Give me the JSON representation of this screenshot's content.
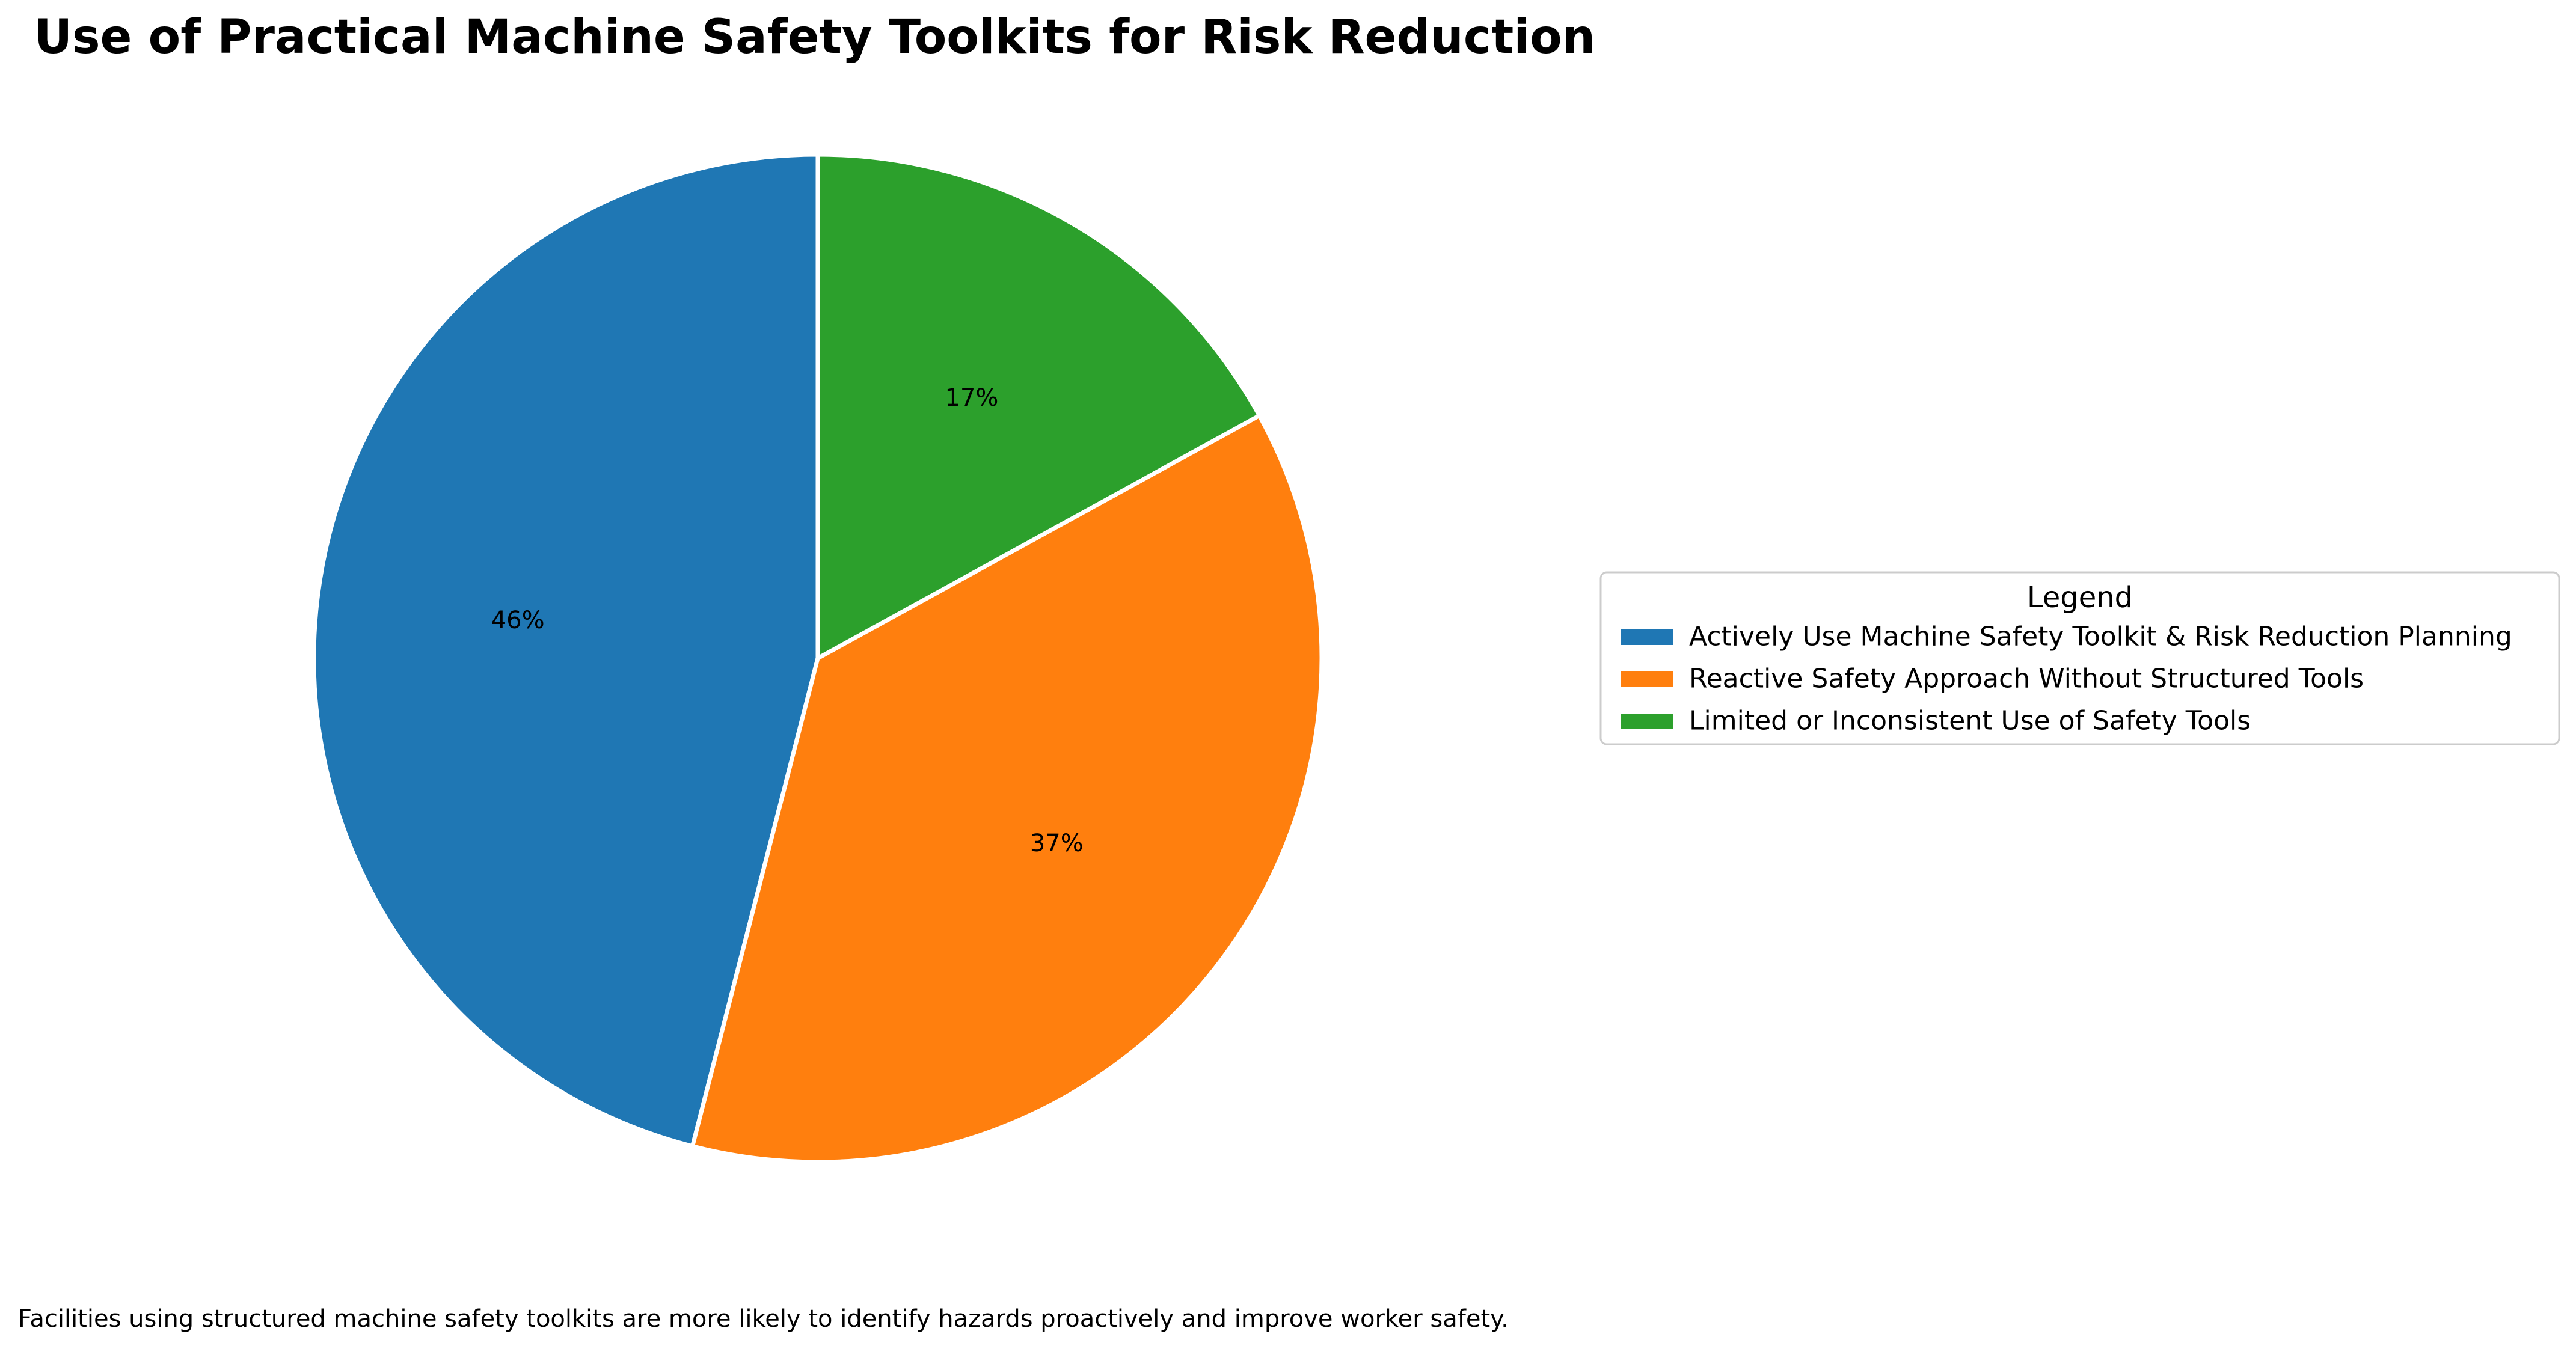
{
  "chart_data": {
    "type": "pie",
    "title": "Use of Practical Machine Safety Toolkits for Risk Reduction",
    "categories": [
      "Actively Use Machine Safety Toolkit & Risk Reduction Planning",
      "Reactive Safety Approach Without Structured Tools",
      "Limited or Inconsistent Use of Safety Tools"
    ],
    "values": [
      46,
      37,
      17
    ],
    "value_labels": [
      "46%",
      "37%",
      "17%"
    ],
    "colors": [
      "#1f77b4",
      "#ff7f0e",
      "#2ca02c"
    ],
    "start_angle_deg": 90,
    "direction": "counterclockwise",
    "edge_color": "#ffffff",
    "legend": {
      "title": "Legend",
      "placement": "center-right"
    },
    "footnote": "Facilities using structured machine safety toolkits are more likely to identify hazards proactively and improve worker safety."
  }
}
